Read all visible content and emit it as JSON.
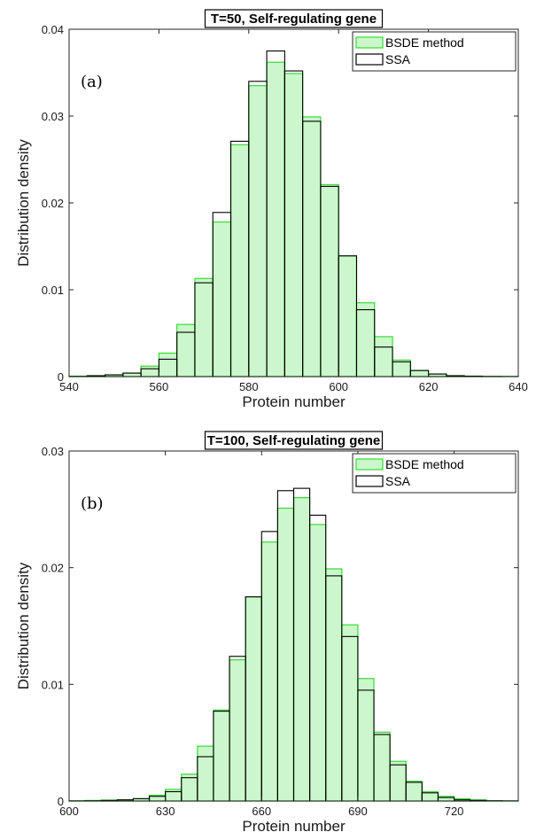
{
  "chart_data": [
    {
      "type": "bar",
      "title": "T=50, Self-regulating gene",
      "panel_label": "(a)",
      "xlabel": "Protein number",
      "ylabel": "Distribution density",
      "xlim": [
        540,
        640
      ],
      "ylim": [
        0,
        0.04
      ],
      "xticks": [
        "540",
        "560",
        "580",
        "600",
        "620",
        "640"
      ],
      "yticks": [
        "0",
        "0.01",
        "0.02",
        "0.03",
        "0.04"
      ],
      "bin_width": 4,
      "legend": {
        "position": "top-right",
        "entries": [
          "BSDE method",
          "SSA"
        ]
      },
      "series": [
        {
          "name": "BSDE method",
          "style": "filled",
          "x": [
            542,
            546,
            550,
            554,
            558,
            562,
            566,
            570,
            574,
            578,
            582,
            586,
            590,
            594,
            598,
            602,
            606,
            610,
            614,
            618,
            622,
            626,
            630,
            634,
            638
          ],
          "values": [
            5e-05,
            0.0001,
            0.0002,
            0.0004,
            0.0012,
            0.0027,
            0.006,
            0.0113,
            0.0178,
            0.0267,
            0.0335,
            0.0362,
            0.0349,
            0.0299,
            0.0221,
            0.0139,
            0.0085,
            0.0046,
            0.0019,
            0.0007,
            0.0003,
            0.0001,
            5e-05,
            2e-05,
            1e-05
          ]
        },
        {
          "name": "SSA",
          "style": "outline",
          "x": [
            542,
            546,
            550,
            554,
            558,
            562,
            566,
            570,
            574,
            578,
            582,
            586,
            590,
            594,
            598,
            602,
            606,
            610,
            614,
            618,
            622,
            626,
            630,
            634,
            638
          ],
          "values": [
            2e-05,
            0.0001,
            0.0002,
            0.0004,
            0.0009,
            0.002,
            0.0051,
            0.0108,
            0.0189,
            0.0271,
            0.034,
            0.0375,
            0.0352,
            0.0294,
            0.0219,
            0.0139,
            0.0077,
            0.0034,
            0.0017,
            0.0007,
            0.0003,
            0.0001,
            5e-05,
            2e-05,
            1e-05
          ]
        }
      ]
    },
    {
      "type": "bar",
      "title": "T=100, Self-regulating gene",
      "panel_label": "(b)",
      "xlabel": "Protein number",
      "ylabel": "Distribution density",
      "xlim": [
        600,
        740
      ],
      "ylim": [
        0,
        0.03
      ],
      "xticks": [
        "600",
        "630",
        "660",
        "690",
        "720"
      ],
      "yticks": [
        "0",
        "0.01",
        "0.02",
        "0.03"
      ],
      "bin_width": 5,
      "legend": {
        "position": "top-right",
        "entries": [
          "BSDE method",
          "SSA"
        ]
      },
      "series": [
        {
          "name": "BSDE method",
          "style": "filled",
          "x": [
            602.5,
            607.5,
            612.5,
            617.5,
            622.5,
            627.5,
            632.5,
            637.5,
            642.5,
            647.5,
            652.5,
            657.5,
            662.5,
            667.5,
            672.5,
            677.5,
            682.5,
            687.5,
            692.5,
            697.5,
            702.5,
            707.5,
            712.5,
            717.5,
            722.5,
            727.5,
            732.5,
            737.5
          ],
          "values": [
            2e-05,
            5e-05,
            8e-05,
            0.0001,
            0.0002,
            0.0005,
            0.001,
            0.0023,
            0.0047,
            0.0078,
            0.0121,
            0.0175,
            0.0222,
            0.0251,
            0.026,
            0.0237,
            0.0199,
            0.0151,
            0.0105,
            0.0059,
            0.0034,
            0.0017,
            0.0008,
            0.0004,
            0.0002,
            0.0001,
            3e-05,
            1e-05
          ]
        },
        {
          "name": "SSA",
          "style": "outline",
          "x": [
            602.5,
            607.5,
            612.5,
            617.5,
            622.5,
            627.5,
            632.5,
            637.5,
            642.5,
            647.5,
            652.5,
            657.5,
            662.5,
            667.5,
            672.5,
            677.5,
            682.5,
            687.5,
            692.5,
            697.5,
            702.5,
            707.5,
            712.5,
            717.5,
            722.5,
            727.5,
            732.5,
            737.5
          ],
          "values": [
            1e-05,
            2e-05,
            5e-05,
            0.0001,
            0.0002,
            0.0004,
            0.0008,
            0.002,
            0.0038,
            0.0077,
            0.0124,
            0.0175,
            0.0231,
            0.0266,
            0.0268,
            0.0245,
            0.0193,
            0.0141,
            0.0095,
            0.0057,
            0.0031,
            0.0016,
            0.0007,
            0.0003,
            0.0001,
            5e-05,
            2e-05,
            1e-05
          ]
        }
      ]
    }
  ],
  "colors": {
    "bsde_fill": "#ccf7cc",
    "bsde_edge": "#33dd33",
    "ssa_edge": "#000000",
    "axis": "#262626"
  }
}
